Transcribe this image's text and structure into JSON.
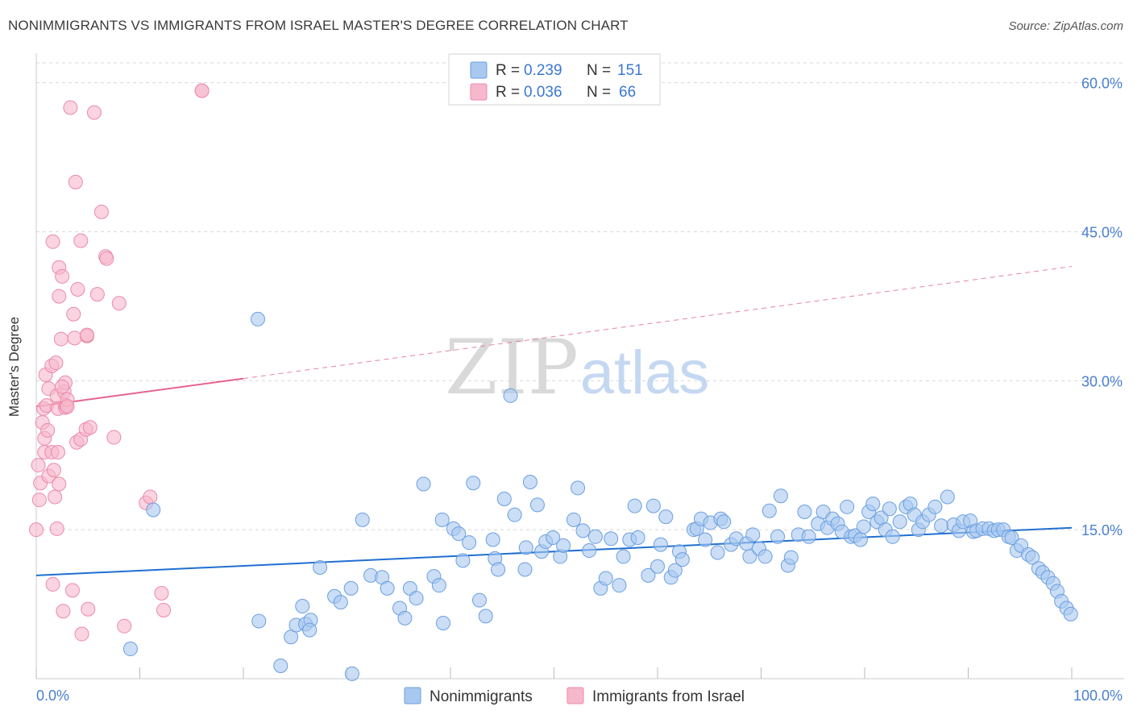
{
  "header": {
    "title": "NONIMMIGRANTS VS IMMIGRANTS FROM ISRAEL MASTER'S DEGREE CORRELATION CHART",
    "source": "Source: ZipAtlas.com"
  },
  "watermark": {
    "zip": "ZIP",
    "atlas": "atlas"
  },
  "colors": {
    "blue_fill": "#a9c8f0",
    "blue_stroke": "#6a9fe0",
    "blue_line": "#1f6fd1",
    "pink_fill": "#f6b8cb",
    "pink_stroke": "#ec8aa8",
    "pink_line": "#e5648e",
    "axis_text": "#4a7fd0",
    "grid": "#d8d8d8"
  },
  "chart_data": {
    "type": "scatter",
    "title": "NONIMMIGRANTS VS IMMIGRANTS FROM ISRAEL MASTER'S DEGREE CORRELATION CHART",
    "xlabel": "",
    "ylabel": "Master's Degree",
    "xlim": [
      0,
      100
    ],
    "ylim": [
      0,
      62
    ],
    "x_tick_labels": [
      "0.0%",
      "100.0%"
    ],
    "y_ticks": [
      15,
      30,
      45,
      60
    ],
    "y_tick_labels": [
      "15.0%",
      "30.0%",
      "45.0%",
      "60.0%"
    ],
    "grid": true,
    "legend_position": "top-center",
    "stats": [
      {
        "r_label": "R =",
        "r": "0.239",
        "n_label": "N =",
        "n": "151"
      },
      {
        "r_label": "R =",
        "r": "0.036",
        "n_label": "N =",
        "n": "66"
      }
    ],
    "series": [
      {
        "name": "Nonimmigrants",
        "color": "#a9c8f0",
        "trend": {
          "x0": 0,
          "y0": 10.4,
          "x1": 100,
          "y1": 15.2,
          "dashed_from": null
        },
        "points": [
          [
            21.4,
            36.2
          ],
          [
            45.8,
            28.5
          ],
          [
            11.3,
            17
          ],
          [
            9.1,
            3
          ],
          [
            23.6,
            1.3
          ],
          [
            30.5,
            0.5
          ],
          [
            21.5,
            5.8
          ],
          [
            24.6,
            4.2
          ],
          [
            25.1,
            5.4
          ],
          [
            26,
            5.5
          ],
          [
            26.5,
            5.9
          ],
          [
            25.7,
            7.3
          ],
          [
            26.4,
            4.9
          ],
          [
            27.4,
            11.2
          ],
          [
            28.8,
            8.3
          ],
          [
            29.4,
            7.7
          ],
          [
            30.4,
            9.1
          ],
          [
            31.5,
            16
          ],
          [
            32.3,
            10.4
          ],
          [
            33.4,
            10.2
          ],
          [
            33.9,
            9.1
          ],
          [
            35.1,
            7.1
          ],
          [
            35.6,
            6.1
          ],
          [
            36.1,
            9.1
          ],
          [
            36.7,
            8.1
          ],
          [
            37.4,
            19.6
          ],
          [
            38.4,
            10.3
          ],
          [
            38.9,
            9.4
          ],
          [
            39.3,
            5.6
          ],
          [
            39.2,
            16
          ],
          [
            40.3,
            15.1
          ],
          [
            40.8,
            14.6
          ],
          [
            41.2,
            11.9
          ],
          [
            41.8,
            13.7
          ],
          [
            42.2,
            19.7
          ],
          [
            42.8,
            7.9
          ],
          [
            43.4,
            6.3
          ],
          [
            44.1,
            14
          ],
          [
            44.3,
            12.1
          ],
          [
            44.6,
            11
          ],
          [
            45.2,
            18.1
          ],
          [
            46.2,
            16.5
          ],
          [
            47.2,
            11
          ],
          [
            47.3,
            13.2
          ],
          [
            47.7,
            19.8
          ],
          [
            48.4,
            17.5
          ],
          [
            48.8,
            12.8
          ],
          [
            49.2,
            13.8
          ],
          [
            49.9,
            14.2
          ],
          [
            50.6,
            12.3
          ],
          [
            50.9,
            13.4
          ],
          [
            51.9,
            16
          ],
          [
            52.3,
            19.2
          ],
          [
            52.8,
            14.9
          ],
          [
            53.4,
            12.9
          ],
          [
            54,
            14.3
          ],
          [
            54.5,
            9.1
          ],
          [
            55,
            10.1
          ],
          [
            55.5,
            14.1
          ],
          [
            56.3,
            9.4
          ],
          [
            56.7,
            12.3
          ],
          [
            57.3,
            14
          ],
          [
            57.8,
            17.4
          ],
          [
            58.1,
            14.2
          ],
          [
            59.1,
            10.4
          ],
          [
            59.6,
            17.4
          ],
          [
            60,
            11.3
          ],
          [
            60.3,
            13.5
          ],
          [
            60.8,
            16.3
          ],
          [
            61.3,
            10.2
          ],
          [
            61.7,
            10.9
          ],
          [
            62.1,
            12.8
          ],
          [
            62.4,
            12
          ],
          [
            63.5,
            15
          ],
          [
            63.8,
            15.1
          ],
          [
            64.2,
            16.1
          ],
          [
            64.6,
            14
          ],
          [
            65.1,
            15.7
          ],
          [
            65.8,
            12.7
          ],
          [
            66.1,
            16.1
          ],
          [
            66.4,
            15.8
          ],
          [
            67.1,
            13.5
          ],
          [
            67.6,
            14.1
          ],
          [
            68.6,
            13.6
          ],
          [
            68.9,
            12.3
          ],
          [
            69.2,
            14.5
          ],
          [
            69.8,
            13.1
          ],
          [
            70.4,
            12.3
          ],
          [
            70.8,
            16.9
          ],
          [
            71.6,
            14.3
          ],
          [
            71.9,
            18.4
          ],
          [
            72.6,
            11.4
          ],
          [
            72.9,
            12.2
          ],
          [
            73.6,
            14.5
          ],
          [
            74.2,
            16.8
          ],
          [
            74.6,
            14.3
          ],
          [
            75.5,
            15.6
          ],
          [
            76,
            16.8
          ],
          [
            76.4,
            15.2
          ],
          [
            76.9,
            16.1
          ],
          [
            77.4,
            15.6
          ],
          [
            77.8,
            14.8
          ],
          [
            78.3,
            17.3
          ],
          [
            78.7,
            14.3
          ],
          [
            79.1,
            14.4
          ],
          [
            79.6,
            14
          ],
          [
            79.9,
            15.3
          ],
          [
            80.4,
            16.8
          ],
          [
            80.8,
            17.6
          ],
          [
            81.2,
            15.8
          ],
          [
            81.6,
            16.2
          ],
          [
            82,
            15
          ],
          [
            82.4,
            17.1
          ],
          [
            82.7,
            14.3
          ],
          [
            83.4,
            15.8
          ],
          [
            84,
            17.3
          ],
          [
            84.4,
            17.6
          ],
          [
            84.8,
            16.5
          ],
          [
            85.2,
            15
          ],
          [
            85.6,
            15.8
          ],
          [
            86.2,
            16.5
          ],
          [
            86.8,
            17.3
          ],
          [
            87.4,
            15.4
          ],
          [
            88,
            18.3
          ],
          [
            88.6,
            15.5
          ],
          [
            89.1,
            14.9
          ],
          [
            89.5,
            15.8
          ],
          [
            90.2,
            15.9
          ],
          [
            90.5,
            14.8
          ],
          [
            90.8,
            14.9
          ],
          [
            91.4,
            15.1
          ],
          [
            92,
            15.1
          ],
          [
            92.5,
            14.9
          ],
          [
            92.9,
            15
          ],
          [
            93.4,
            15
          ],
          [
            93.9,
            14.3
          ],
          [
            94.2,
            14.2
          ],
          [
            94.7,
            12.9
          ],
          [
            95.1,
            13.4
          ],
          [
            95.8,
            12.5
          ],
          [
            96.2,
            12.2
          ],
          [
            96.8,
            11.1
          ],
          [
            97.2,
            10.7
          ],
          [
            97.7,
            10.2
          ],
          [
            98.2,
            9.6
          ],
          [
            98.6,
            8.8
          ],
          [
            99,
            7.8
          ],
          [
            99.5,
            7.1
          ],
          [
            99.9,
            6.5
          ]
        ]
      },
      {
        "name": "Immigrants from Israel",
        "color": "#f6b8cb",
        "trend": {
          "x0": 0,
          "y0": 27.4,
          "x1": 100,
          "y1": 41.5,
          "solid_until": 20
        },
        "points": [
          [
            0,
            15
          ],
          [
            0.2,
            21.5
          ],
          [
            0.3,
            18
          ],
          [
            0.4,
            19.7
          ],
          [
            0.6,
            25.8
          ],
          [
            0.7,
            27.2
          ],
          [
            0.8,
            24.2
          ],
          [
            0.8,
            22.8
          ],
          [
            0.9,
            30.6
          ],
          [
            1,
            27.5
          ],
          [
            1.1,
            25
          ],
          [
            1.2,
            29.2
          ],
          [
            1.2,
            20.4
          ],
          [
            1.5,
            22.8
          ],
          [
            1.5,
            31.5
          ],
          [
            1.6,
            44
          ],
          [
            1.6,
            9.5
          ],
          [
            1.7,
            21
          ],
          [
            1.8,
            18.3
          ],
          [
            2,
            28.5
          ],
          [
            2,
            15.1
          ],
          [
            2.1,
            27.2
          ],
          [
            2.1,
            22.8
          ],
          [
            2.2,
            41.4
          ],
          [
            2.2,
            38.5
          ],
          [
            2.2,
            19.6
          ],
          [
            2.4,
            34.2
          ],
          [
            2.5,
            40.5
          ],
          [
            2.6,
            6.8
          ],
          [
            2.7,
            28.9
          ],
          [
            2.8,
            27.3
          ],
          [
            2.8,
            29.8
          ],
          [
            2.9,
            27.5
          ],
          [
            3,
            28.1
          ],
          [
            3,
            27.4
          ],
          [
            3.3,
            57.5
          ],
          [
            3.5,
            8.9
          ],
          [
            3.6,
            36.7
          ],
          [
            3.7,
            34.3
          ],
          [
            3.8,
            50
          ],
          [
            3.9,
            23.8
          ],
          [
            4,
            39.2
          ],
          [
            4.3,
            44.1
          ],
          [
            4.3,
            24.1
          ],
          [
            4.4,
            4.5
          ],
          [
            4.8,
            25.1
          ],
          [
            4.9,
            34.5
          ],
          [
            4.9,
            34.6
          ],
          [
            5,
            7
          ],
          [
            5.2,
            25.3
          ],
          [
            5.6,
            57
          ],
          [
            5.9,
            38.7
          ],
          [
            6.3,
            47
          ],
          [
            6.7,
            42.5
          ],
          [
            6.8,
            42.3
          ],
          [
            7.5,
            24.3
          ],
          [
            8,
            37.8
          ],
          [
            8.5,
            5.3
          ],
          [
            10.6,
            17.7
          ],
          [
            11,
            18.3
          ],
          [
            12.1,
            8.6
          ],
          [
            12.3,
            6.9
          ],
          [
            16,
            59.2
          ],
          [
            16,
            59.2
          ],
          [
            2.5,
            29.4
          ],
          [
            1.9,
            31.8
          ]
        ]
      }
    ]
  }
}
